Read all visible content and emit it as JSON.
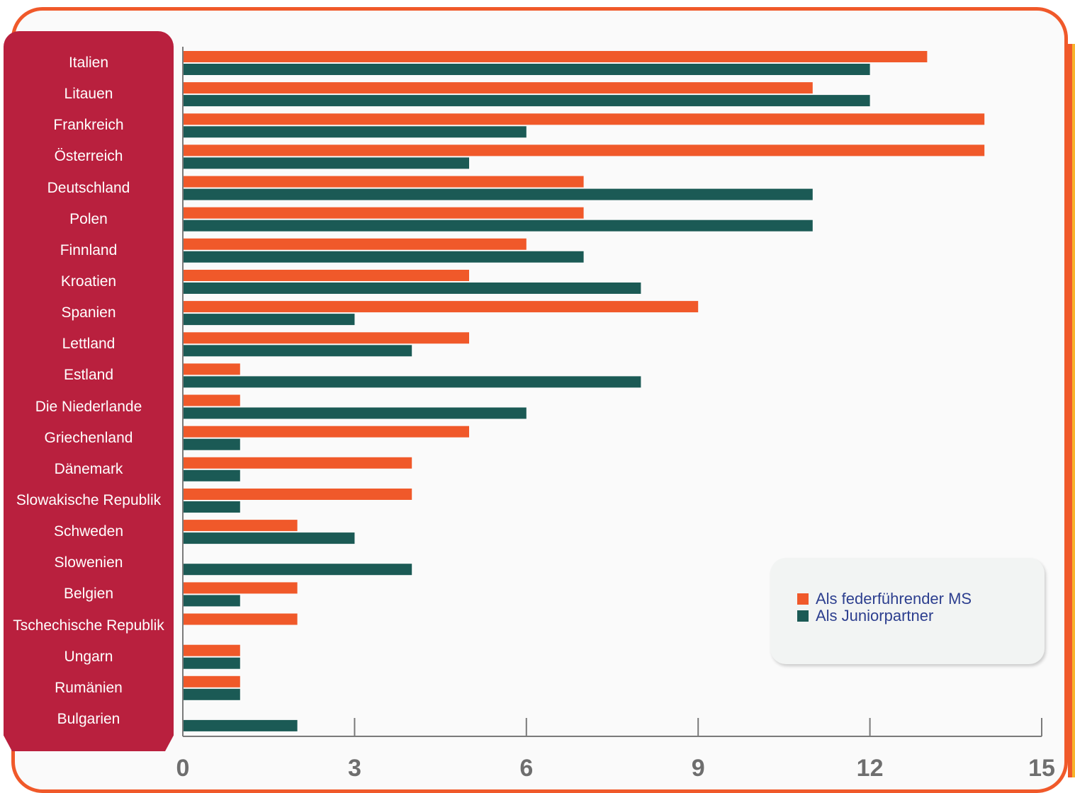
{
  "chart_data": {
    "type": "bar",
    "orientation": "horizontal",
    "categories": [
      "Italien",
      "Litauen",
      "Frankreich",
      "Österreich",
      "Deutschland",
      "Polen",
      "Finnland",
      "Kroatien",
      "Spanien",
      "Lettland",
      "Estland",
      "Die Niederlande",
      "Griechenland",
      "Dänemark",
      "Slowakische Republik",
      "Schweden",
      "Slowenien",
      "Belgien",
      "Tschechische Republik",
      "Ungarn",
      "Rumänien",
      "Bulgarien"
    ],
    "series": [
      {
        "name": "Als federführender MS",
        "color": "#F0592A",
        "values": [
          13,
          11,
          14,
          14,
          7,
          7,
          6,
          5,
          9,
          5,
          1,
          1,
          5,
          4,
          4,
          2,
          0,
          2,
          2,
          1,
          1,
          0
        ]
      },
      {
        "name": "Als Juniorpartner",
        "color": "#1B5A55",
        "values": [
          12,
          12,
          6,
          5,
          11,
          11,
          7,
          8,
          3,
          4,
          8,
          6,
          1,
          1,
          1,
          3,
          4,
          1,
          0,
          1,
          1,
          2
        ]
      }
    ],
    "xlim": [
      0,
      15
    ],
    "xticks": [
      "0",
      "3",
      "6",
      "9",
      "12",
      "15"
    ],
    "grid": false,
    "legend_position": "bottom-right"
  }
}
